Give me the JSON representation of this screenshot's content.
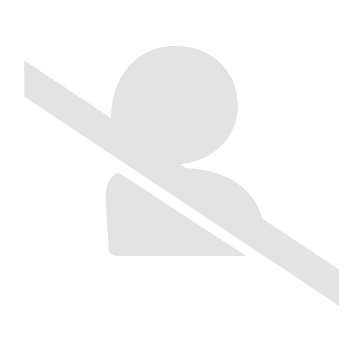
{
  "icon": {
    "name": "user-disabled-icon",
    "color": "#e3e3e3",
    "background": "#ffffff"
  }
}
